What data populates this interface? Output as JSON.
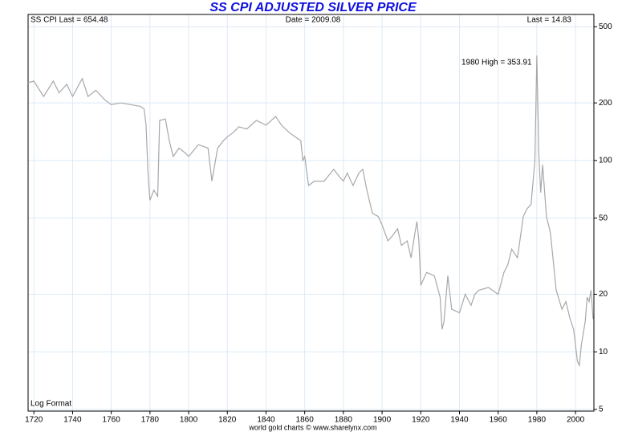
{
  "chart_data": {
    "type": "line",
    "title": "SS CPI ADJUSTED SILVER PRICE",
    "header_left": "SS CPI Last = 654.48",
    "header_center": "Date = 2009.08",
    "header_right": "Last = 14.83",
    "annotation": "1980 High = 353.91",
    "scale_note": "Log Format",
    "footer": "world gold charts © www.sharelynx.com",
    "log_scale": true,
    "grid": true,
    "xlim": [
      1717,
      2009.5
    ],
    "xticks": [
      1720,
      1740,
      1760,
      1780,
      1800,
      1820,
      1840,
      1860,
      1880,
      1900,
      1920,
      1940,
      1960,
      1980,
      2000
    ],
    "ylim": [
      4.9,
      580
    ],
    "yticks": [
      5,
      10,
      20,
      50,
      100,
      200,
      500
    ],
    "series": [
      {
        "color": "#a8a8a8",
        "x": [
          1717,
          1720,
          1725,
          1730,
          1733,
          1737,
          1740,
          1745,
          1748,
          1752,
          1757,
          1760,
          1765,
          1770,
          1775,
          1777,
          1778,
          1779,
          1780,
          1782,
          1784,
          1785,
          1788,
          1790,
          1792,
          1795,
          1798,
          1800,
          1805,
          1810,
          1812,
          1815,
          1818,
          1820,
          1823,
          1826,
          1830,
          1835,
          1840,
          1845,
          1848,
          1852,
          1855,
          1858,
          1859,
          1860,
          1862,
          1865,
          1870,
          1875,
          1878,
          1880,
          1882,
          1885,
          1888,
          1890,
          1892,
          1895,
          1898,
          1900,
          1903,
          1905,
          1908,
          1910,
          1913,
          1915,
          1917,
          1918,
          1919,
          1920,
          1923,
          1927,
          1930,
          1931,
          1932,
          1934,
          1936,
          1940,
          1943,
          1946,
          1948,
          1950,
          1955,
          1960,
          1963,
          1965,
          1967,
          1970,
          1973,
          1975,
          1977,
          1979,
          1980,
          1981,
          1982,
          1983,
          1985,
          1987,
          1990,
          1993,
          1995,
          1997,
          1999,
          2001,
          2002,
          2003,
          2005,
          2006,
          2007,
          2008,
          2009.08
        ],
        "values": [
          255,
          260,
          216,
          260,
          226,
          250,
          216,
          268,
          216,
          233,
          206,
          196,
          200,
          196,
          192,
          186,
          153,
          86,
          62,
          70,
          65,
          162,
          165,
          127,
          105,
          116,
          110,
          105,
          121,
          116,
          78,
          116,
          127,
          133,
          140,
          150,
          146,
          162,
          153,
          170,
          153,
          140,
          133,
          127,
          100,
          105,
          74,
          78,
          78,
          90,
          82,
          78,
          86,
          74,
          86,
          90,
          71,
          53,
          51,
          46,
          38,
          40,
          44,
          36,
          38,
          31,
          42,
          48,
          38,
          22.3,
          26,
          25,
          19.3,
          13.1,
          14.4,
          25,
          16.7,
          16,
          20,
          17.5,
          20,
          21,
          21.7,
          20,
          26,
          28.5,
          34.4,
          31,
          51,
          56,
          59,
          100,
          353.91,
          110,
          68,
          95,
          51,
          42,
          21,
          16.7,
          18.3,
          15.1,
          13.1,
          8.9,
          8.5,
          10.8,
          14.4,
          19.3,
          18.3,
          21,
          14.83
        ]
      }
    ]
  }
}
